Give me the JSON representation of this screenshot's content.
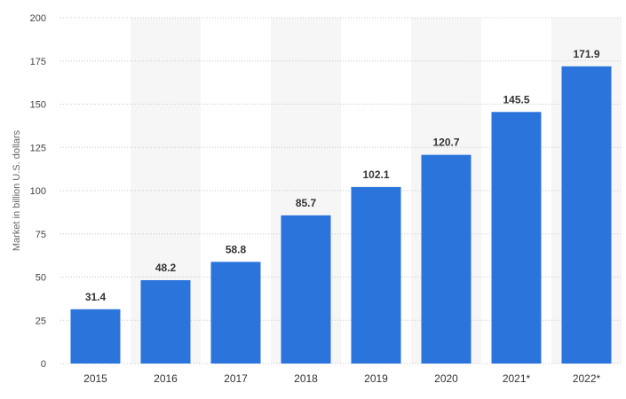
{
  "chart_data": {
    "type": "bar",
    "categories": [
      "2015",
      "2016",
      "2017",
      "2018",
      "2019",
      "2020",
      "2021*",
      "2022*"
    ],
    "values": [
      31.4,
      48.2,
      58.8,
      85.7,
      102.1,
      120.7,
      145.5,
      171.9
    ],
    "value_labels": [
      "31.4",
      "48.2",
      "58.8",
      "85.7",
      "102.1",
      "120.7",
      "145.5",
      "171.9"
    ],
    "ylabel": "Market in billion U.S. dollars",
    "xlabel": "",
    "ylim": [
      0,
      200
    ],
    "yticks": [
      0,
      25,
      50,
      75,
      100,
      125,
      150,
      175,
      200
    ],
    "grid": true,
    "bar_color": "#2a74dc",
    "band_color": "#f6f6f6",
    "grid_color": "#c8c8c8"
  }
}
